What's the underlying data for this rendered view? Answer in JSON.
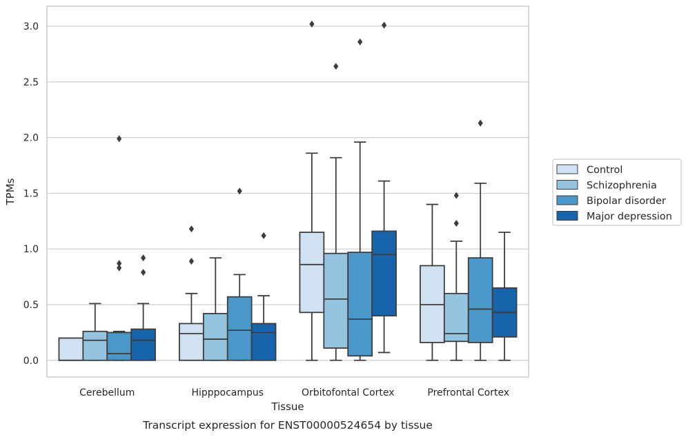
{
  "chart_data": {
    "type": "box",
    "caption": "Transcript expression for ENST00000524654 by tissue",
    "xlabel": "Tissue",
    "ylabel": "TPMs",
    "ylim": [
      -0.15,
      3.18
    ],
    "yticks": [
      0.0,
      0.5,
      1.0,
      1.5,
      2.0,
      2.5,
      3.0
    ],
    "ytick_labels": [
      "0.0",
      "0.5",
      "1.0",
      "1.5",
      "2.0",
      "2.5",
      "3.0"
    ],
    "grid": "horizontal",
    "legend_position": "right",
    "categories": [
      "Cerebellum",
      "Hipppocampus",
      "Orbitofontal Cortex",
      "Prefrontal Cortex"
    ],
    "series": [
      {
        "name": "Control",
        "color": "#d0e1f2",
        "boxes": [
          {
            "whislo": 0.0,
            "q1": 0.0,
            "med": 0.0,
            "q3": 0.2,
            "whishi": 0.2,
            "fliers": []
          },
          {
            "whislo": 0.0,
            "q1": 0.0,
            "med": 0.24,
            "q3": 0.33,
            "whishi": 0.6,
            "fliers": [
              0.89,
              1.18
            ]
          },
          {
            "whislo": 0.0,
            "q1": 0.43,
            "med": 0.86,
            "q3": 1.15,
            "whishi": 1.86,
            "fliers": [
              3.02
            ]
          },
          {
            "whislo": 0.0,
            "q1": 0.16,
            "med": 0.5,
            "q3": 0.85,
            "whishi": 1.4,
            "fliers": []
          }
        ]
      },
      {
        "name": "Schizophrenia",
        "color": "#94c4df",
        "boxes": [
          {
            "whislo": 0.0,
            "q1": 0.0,
            "med": 0.18,
            "q3": 0.26,
            "whishi": 0.51,
            "fliers": []
          },
          {
            "whislo": 0.0,
            "q1": 0.0,
            "med": 0.19,
            "q3": 0.42,
            "whishi": 0.92,
            "fliers": []
          },
          {
            "whislo": 0.0,
            "q1": 0.11,
            "med": 0.55,
            "q3": 0.96,
            "whishi": 1.82,
            "fliers": [
              2.64
            ]
          },
          {
            "whislo": 0.0,
            "q1": 0.17,
            "med": 0.24,
            "q3": 0.6,
            "whishi": 1.07,
            "fliers": [
              1.23,
              1.48
            ]
          }
        ]
      },
      {
        "name": "Bipolar disorder",
        "color": "#4a98c9",
        "boxes": [
          {
            "whislo": 0.0,
            "q1": 0.0,
            "med": 0.06,
            "q3": 0.25,
            "whishi": 0.26,
            "fliers": [
              0.83,
              0.87,
              1.99
            ]
          },
          {
            "whislo": 0.0,
            "q1": 0.0,
            "med": 0.27,
            "q3": 0.57,
            "whishi": 0.77,
            "fliers": [
              1.52
            ]
          },
          {
            "whislo": 0.0,
            "q1": 0.04,
            "med": 0.37,
            "q3": 0.97,
            "whishi": 1.96,
            "fliers": [
              2.86
            ]
          },
          {
            "whislo": 0.0,
            "q1": 0.16,
            "med": 0.46,
            "q3": 0.92,
            "whishi": 1.59,
            "fliers": [
              2.13
            ]
          }
        ]
      },
      {
        "name": "Major depression",
        "color": "#1764ab",
        "boxes": [
          {
            "whislo": 0.0,
            "q1": 0.0,
            "med": 0.18,
            "q3": 0.28,
            "whishi": 0.51,
            "fliers": [
              0.79,
              0.92
            ]
          },
          {
            "whislo": 0.0,
            "q1": 0.0,
            "med": 0.25,
            "q3": 0.33,
            "whishi": 0.58,
            "fliers": [
              1.12
            ]
          },
          {
            "whislo": 0.07,
            "q1": 0.4,
            "med": 0.95,
            "q3": 1.16,
            "whishi": 1.61,
            "fliers": [
              3.01
            ]
          },
          {
            "whislo": 0.0,
            "q1": 0.21,
            "med": 0.43,
            "q3": 0.65,
            "whishi": 1.15,
            "fliers": []
          }
        ]
      }
    ]
  }
}
